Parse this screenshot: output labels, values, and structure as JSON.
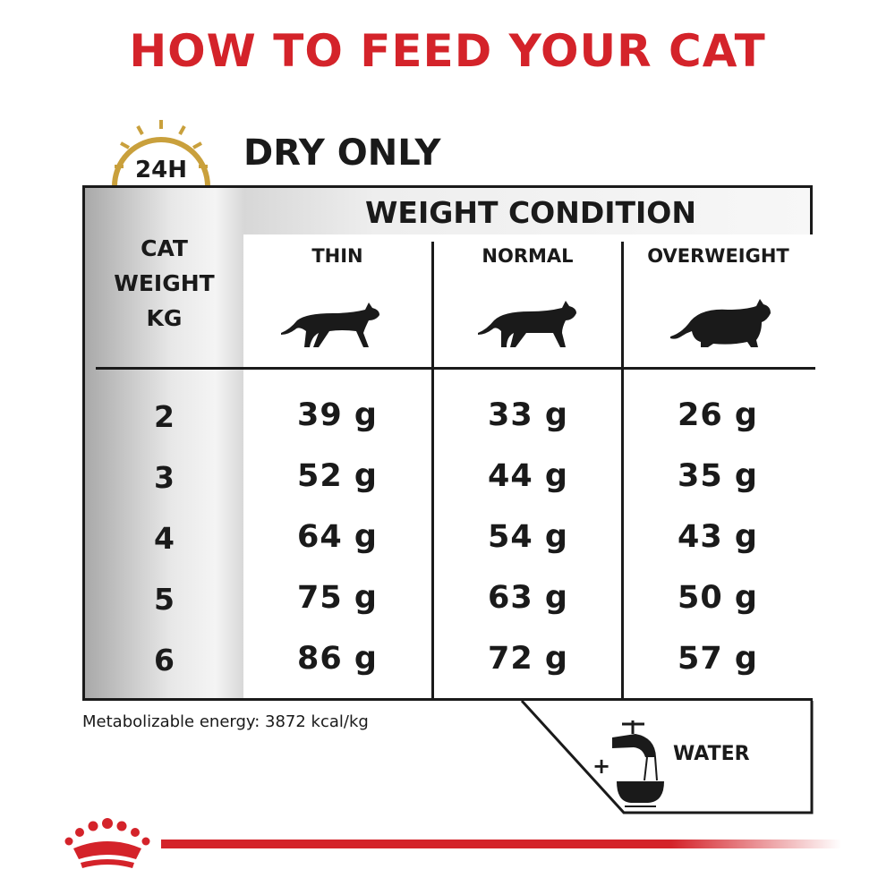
{
  "title": "HOW TO FEED YOUR CAT",
  "clock": {
    "label": "24H",
    "icon": "clock-24h-icon",
    "color": "#c9a03c"
  },
  "section_title": "DRY ONLY",
  "table": {
    "weight_condition_label": "WEIGHT CONDITION",
    "row_header": [
      "CAT",
      "WEIGHT",
      "KG"
    ],
    "columns": [
      {
        "label": "THIN",
        "icon": "thin-cat-icon"
      },
      {
        "label": "NORMAL",
        "icon": "normal-cat-icon"
      },
      {
        "label": "OVERWEIGHT",
        "icon": "overweight-cat-icon"
      }
    ],
    "rows": [
      {
        "kg": "2",
        "values": [
          "39 g",
          "33 g",
          "26 g"
        ]
      },
      {
        "kg": "3",
        "values": [
          "52 g",
          "44 g",
          "35 g"
        ]
      },
      {
        "kg": "4",
        "values": [
          "64 g",
          "54 g",
          "43 g"
        ]
      },
      {
        "kg": "5",
        "values": [
          "75 g",
          "63 g",
          "50 g"
        ]
      },
      {
        "kg": "6",
        "values": [
          "86 g",
          "72 g",
          "57 g"
        ]
      }
    ]
  },
  "metabolizable_energy": "Metabolizable energy: 3872 kcal/kg",
  "water": {
    "plus": "+",
    "label": "WATER",
    "icon": "water-tap-bowl-icon"
  },
  "colors": {
    "brand_red": "#d4232a",
    "text": "#1a1a1a"
  }
}
